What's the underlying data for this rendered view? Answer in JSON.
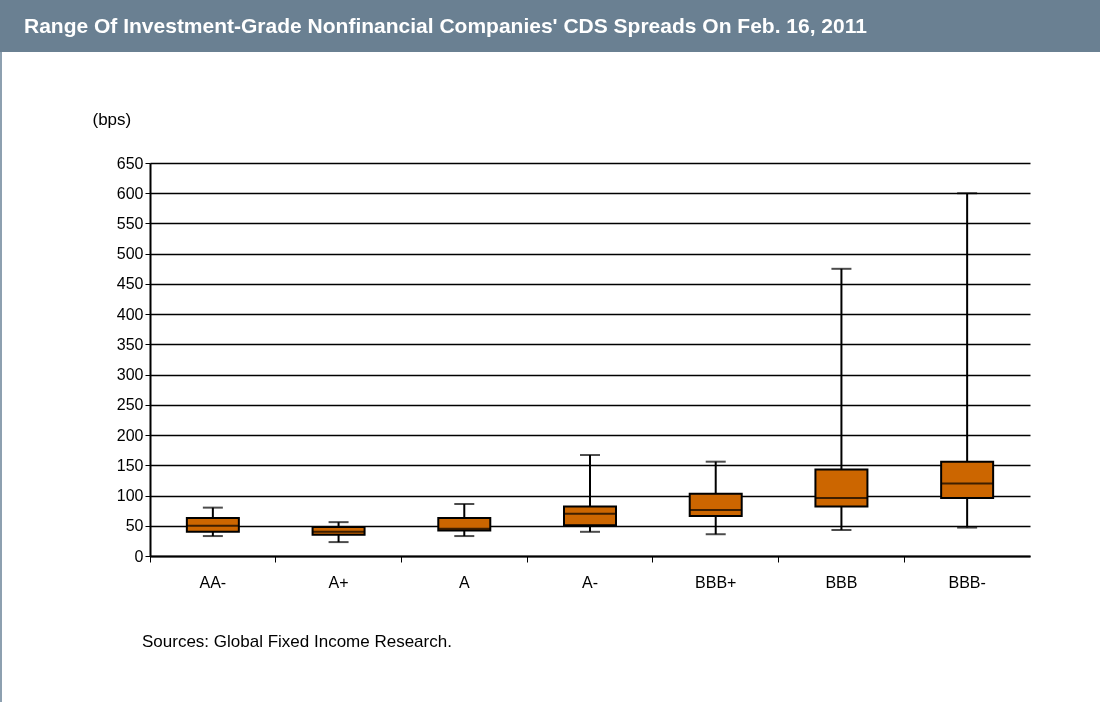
{
  "chart_data": {
    "type": "box",
    "title": "Range Of Investment-Grade Nonfinancial Companies' CDS Spreads On Feb. 16, 2011",
    "ylabel": "(bps)",
    "categories": [
      "AA-",
      "A+",
      "A",
      "A-",
      "BBB+",
      "BBB",
      "BBB-"
    ],
    "boxes": [
      {
        "low": 33,
        "q1": 40,
        "median": 50,
        "q3": 63,
        "high": 80
      },
      {
        "low": 23,
        "q1": 35,
        "median": 40,
        "q3": 48,
        "high": 56
      },
      {
        "low": 33,
        "q1": 42,
        "median": 45,
        "q3": 63,
        "high": 86
      },
      {
        "low": 40,
        "q1": 51,
        "median": 70,
        "q3": 82,
        "high": 167
      },
      {
        "low": 36,
        "q1": 66,
        "median": 76,
        "q3": 103,
        "high": 156
      },
      {
        "low": 43,
        "q1": 82,
        "median": 96,
        "q3": 143,
        "high": 475
      },
      {
        "low": 47,
        "q1": 96,
        "median": 120,
        "q3": 156,
        "high": 600
      }
    ],
    "color": "#cc6600",
    "ylim": [
      0,
      650
    ],
    "yticks": [
      0,
      50,
      100,
      150,
      200,
      250,
      300,
      350,
      400,
      450,
      500,
      550,
      600,
      650
    ],
    "grid": "y",
    "annotations": [
      "Sources: Global Fixed Income Research."
    ]
  }
}
